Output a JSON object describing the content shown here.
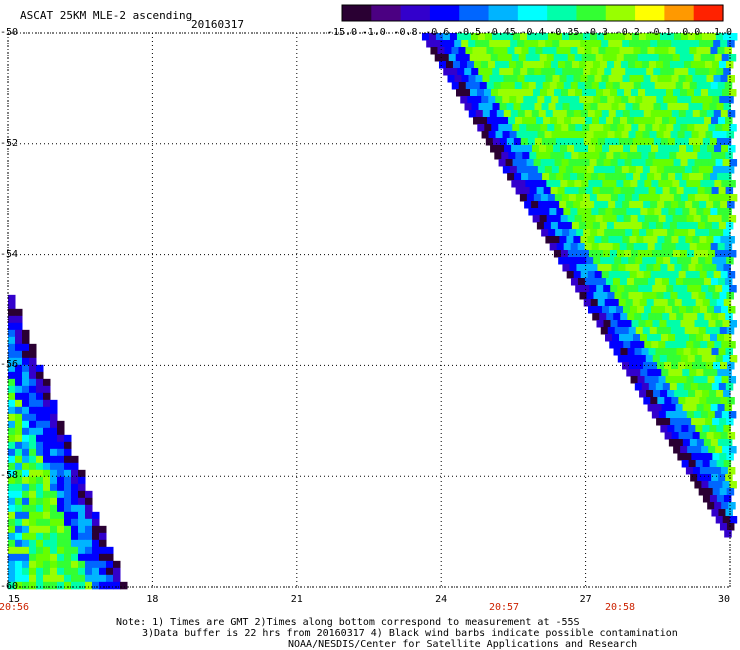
{
  "title": "ASCAT 25KM MLE-2 ascending",
  "date": "20160317",
  "colorbar": {
    "ticks": [
      "-15.0",
      "-1.0",
      "-0.8",
      "-0.6",
      "-0.5",
      "-0.45",
      "-0.4",
      "-0.35",
      "-0.3",
      "-0.2",
      "-0.1",
      "0.0",
      "1.0"
    ],
    "colors": [
      "#2a0033",
      "#4b0082",
      "#3300cc",
      "#0000ff",
      "#0066ff",
      "#00b4ff",
      "#00ffff",
      "#00ffaa",
      "#33ff33",
      "#99ff00",
      "#ffff00",
      "#ff9900",
      "#ff2200"
    ]
  },
  "axes": {
    "lat_labels": [
      "-50",
      "-52",
      "-54",
      "-56",
      "-58",
      "-60"
    ],
    "lon_labels": [
      "15",
      "18",
      "21",
      "24",
      "27",
      "30"
    ],
    "lat_range": [
      -60,
      -50
    ],
    "lon_range": [
      15,
      30
    ]
  },
  "time_labels": [
    "20:56",
    "20:57",
    "20:58"
  ],
  "notes": [
    "Note: 1) Times are GMT 2)Times along bottom correspond to measurement at -55S",
    "3)Data buffer is 22 hrs from 20160317 4) Black wind barbs indicate possible contamination",
    "NOAA/NESDIS/Center for Satellite Applications and Research"
  ],
  "swaths": [
    {
      "name": "west",
      "edge_lat": [
        -54.6,
        -60.0
      ],
      "edge_lon": [
        15.0,
        17.4
      ],
      "inner_lon": 15.0
    },
    {
      "name": "east",
      "edge_lat": [
        -50.0,
        -59.0
      ],
      "edge_lon": [
        23.6,
        29.9
      ],
      "inner_lon": 30.0
    }
  ]
}
